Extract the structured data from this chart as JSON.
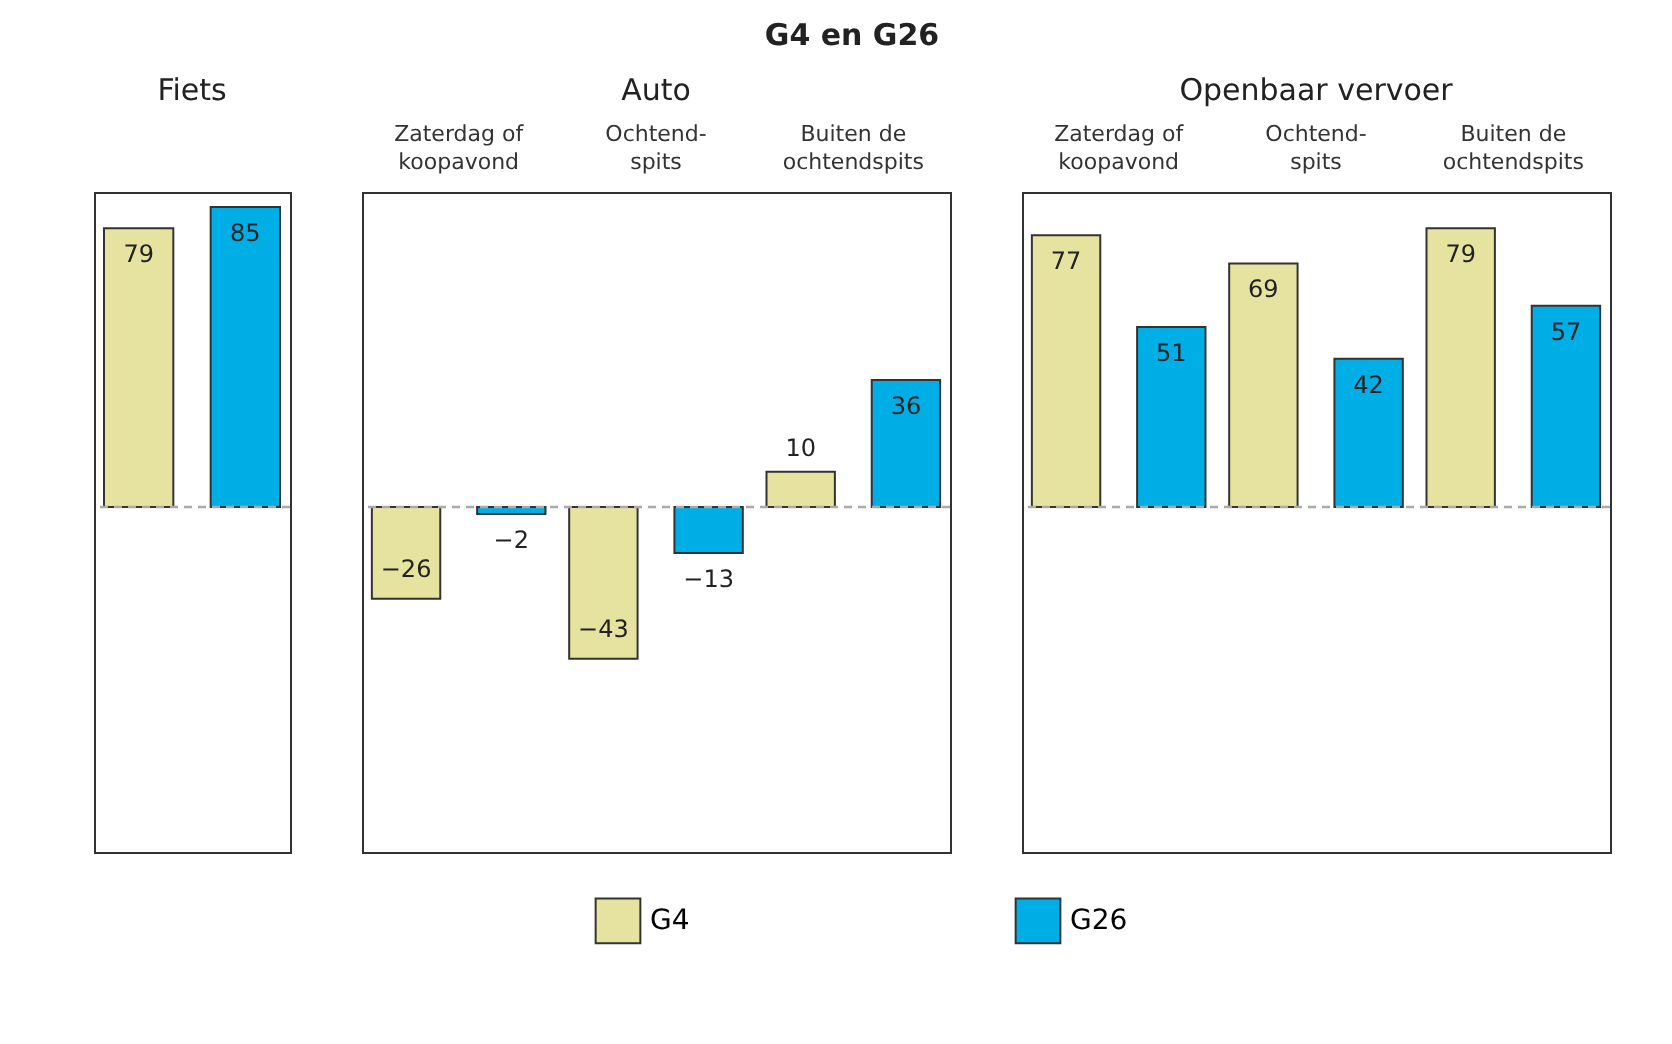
{
  "chart_data": [
    {
      "type": "bar",
      "title": "Fiets",
      "annotations": [
        "G4 en G26"
      ],
      "categories": [
        null
      ],
      "series": [
        {
          "name": "G4",
          "color": "#e6e2a0",
          "values": [
            79
          ]
        },
        {
          "name": "G26",
          "color": "#00aee6",
          "values": [
            85
          ]
        }
      ],
      "data_labels": true,
      "legend": "bottom",
      "ref_lines": [
        {
          "axis": "y",
          "value": 0,
          "color": "#aaaaaa",
          "line_style": "dashed"
        }
      ]
    },
    {
      "type": "bar",
      "title": "Auto",
      "categories": [
        "Zaterdag of\nkoopavond",
        "Ochtend-\nspits",
        "Buiten de\nochtendspits"
      ],
      "series": [
        {
          "name": "G4",
          "color": "#e6e2a0",
          "values": [
            -26,
            -43,
            10
          ]
        },
        {
          "name": "G26",
          "color": "#00aee6",
          "values": [
            -2,
            -13,
            36
          ]
        }
      ],
      "data_labels": true,
      "legend": "bottom",
      "ref_lines": [
        {
          "axis": "y",
          "value": 0,
          "color": "#aaaaaa",
          "line_style": "dashed"
        }
      ]
    },
    {
      "type": "bar",
      "title": "Openbaar vervoer",
      "categories": [
        "Zaterdag of\nkoopavond",
        "Ochtend-\nspits",
        "Buiten de\nochtendspits"
      ],
      "series": [
        {
          "name": "G4",
          "color": "#e6e2a0",
          "values": [
            77,
            69,
            79
          ]
        },
        {
          "name": "G26",
          "color": "#00aee6",
          "values": [
            51,
            42,
            57
          ]
        }
      ],
      "data_labels": true,
      "legend": "bottom",
      "ref_lines": [
        {
          "axis": "y",
          "value": 0,
          "color": "#aaaaaa",
          "line_style": "dashed"
        }
      ]
    }
  ]
}
